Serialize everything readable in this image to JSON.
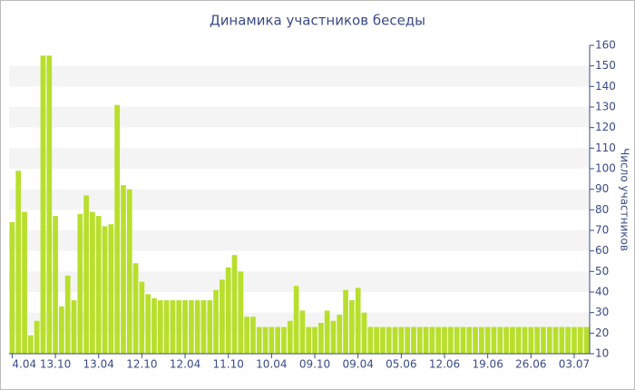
{
  "chart_data": {
    "type": "bar",
    "title": "Динамика участников беседы",
    "y_label": "Число участников",
    "color": "#b8df2c",
    "grid": "bands",
    "y_axis_side": "right",
    "categories": [
      "4.04",
      null,
      null,
      null,
      null,
      null,
      null,
      "13.10",
      null,
      null,
      null,
      null,
      null,
      null,
      "13.04",
      null,
      null,
      null,
      null,
      null,
      null,
      "12.10",
      null,
      null,
      null,
      null,
      null,
      null,
      "12.04",
      null,
      null,
      null,
      null,
      null,
      null,
      "11.10",
      null,
      null,
      null,
      null,
      null,
      null,
      "10.04",
      null,
      null,
      null,
      null,
      null,
      null,
      "09.10",
      null,
      null,
      null,
      null,
      null,
      null,
      "09.04",
      null,
      null,
      null,
      null,
      null,
      null,
      "05.06",
      null,
      null,
      null,
      null,
      null,
      null,
      "12.06",
      null,
      null,
      null,
      null,
      null,
      null,
      "19.06",
      null,
      null,
      null,
      null,
      null,
      null,
      "26.06",
      null,
      null,
      null,
      null,
      null,
      null,
      "03.07",
      null,
      null
    ],
    "values": [
      74,
      99,
      79,
      19,
      26,
      155,
      155,
      77,
      33,
      48,
      36,
      78,
      87,
      79,
      77,
      72,
      73,
      131,
      92,
      90,
      54,
      45,
      39,
      37,
      36,
      36,
      36,
      36,
      36,
      36,
      36,
      36,
      36,
      41,
      46,
      52,
      58,
      50,
      28,
      28,
      23,
      23,
      23,
      23,
      23,
      26,
      43,
      31,
      23,
      23,
      25,
      31,
      26,
      29,
      41,
      36,
      42,
      30,
      23,
      23,
      23,
      23,
      23,
      23,
      23,
      23,
      23,
      23,
      23,
      23,
      23,
      23,
      23,
      23,
      23,
      23,
      23,
      23,
      23,
      23,
      23,
      23,
      23,
      23,
      23,
      23,
      23,
      23,
      23,
      23,
      23,
      23,
      23,
      23
    ],
    "ylim": [
      10,
      160
    ],
    "yticks": [
      10,
      20,
      30,
      40,
      50,
      60,
      70,
      80,
      90,
      100,
      110,
      120,
      130,
      140,
      150,
      160
    ]
  }
}
